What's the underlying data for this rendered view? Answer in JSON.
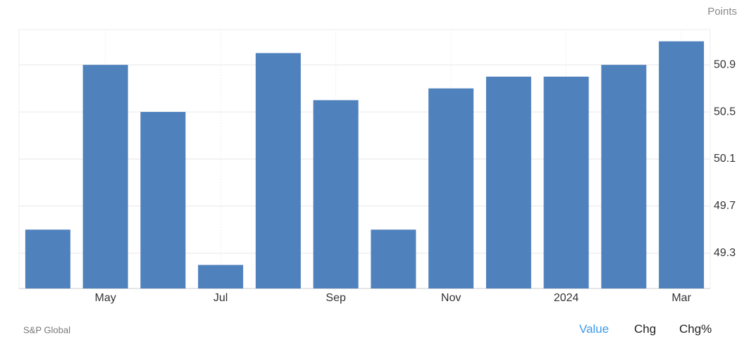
{
  "chart_data": {
    "type": "bar",
    "y_axis_label": "Points",
    "source": "S&P Global",
    "categories": [
      null,
      "May",
      null,
      "Jul",
      null,
      "Sep",
      null,
      "Nov",
      null,
      "2024",
      null,
      "Mar"
    ],
    "values": [
      49.5,
      50.9,
      50.5,
      49.2,
      51.0,
      50.6,
      49.5,
      50.7,
      50.8,
      50.8,
      50.9,
      51.1
    ],
    "color": "#4f81bd",
    "ylim": [
      49.0,
      51.2
    ],
    "yticks": [
      49.3,
      49.7,
      50.1,
      50.5,
      50.9
    ],
    "grid": true
  },
  "controls": [
    "Value",
    "Chg",
    "Chg%"
  ]
}
